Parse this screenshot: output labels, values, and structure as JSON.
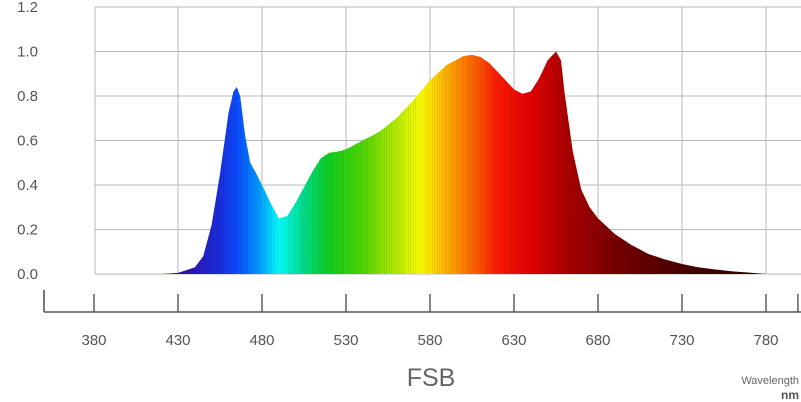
{
  "chart_data": {
    "type": "area",
    "title": "FSB",
    "xlabel": "Wavelength",
    "xunit": "nm",
    "ylabel": "",
    "xlim": [
      355,
      800
    ],
    "ylim": [
      0,
      1.2
    ],
    "x_ticks": [
      380,
      430,
      480,
      530,
      580,
      630,
      680,
      730,
      780
    ],
    "y_ticks": [
      0.0,
      0.2,
      0.4,
      0.6,
      0.8,
      1.0,
      1.2
    ],
    "y_tick_labels": [
      "0.0",
      "0.2",
      "0.4",
      "0.6",
      "0.8",
      "1.0",
      "1.2"
    ],
    "grid": true,
    "fill": "spectral rainbow gradient",
    "series": [
      {
        "x": [
          420,
          430,
          440,
          445,
          450,
          455,
          460,
          463,
          465,
          467,
          470,
          473,
          476,
          480,
          485,
          490,
          495,
          500,
          505,
          510,
          515,
          520,
          525,
          530,
          540,
          550,
          560,
          570,
          580,
          590,
          600,
          605,
          610,
          615,
          620,
          625,
          630,
          635,
          640,
          645,
          650,
          655,
          658,
          660,
          665,
          670,
          675,
          680,
          690,
          700,
          710,
          720,
          730,
          740,
          750,
          760,
          770,
          780
        ],
        "values": [
          0.0,
          0.005,
          0.03,
          0.08,
          0.22,
          0.45,
          0.72,
          0.82,
          0.84,
          0.8,
          0.62,
          0.5,
          0.46,
          0.4,
          0.32,
          0.25,
          0.26,
          0.32,
          0.39,
          0.46,
          0.52,
          0.545,
          0.55,
          0.56,
          0.6,
          0.64,
          0.7,
          0.78,
          0.87,
          0.94,
          0.98,
          0.985,
          0.975,
          0.95,
          0.91,
          0.87,
          0.83,
          0.81,
          0.82,
          0.88,
          0.96,
          1.0,
          0.96,
          0.82,
          0.55,
          0.38,
          0.3,
          0.25,
          0.18,
          0.13,
          0.09,
          0.065,
          0.045,
          0.03,
          0.02,
          0.012,
          0.006,
          0.0
        ]
      }
    ]
  }
}
